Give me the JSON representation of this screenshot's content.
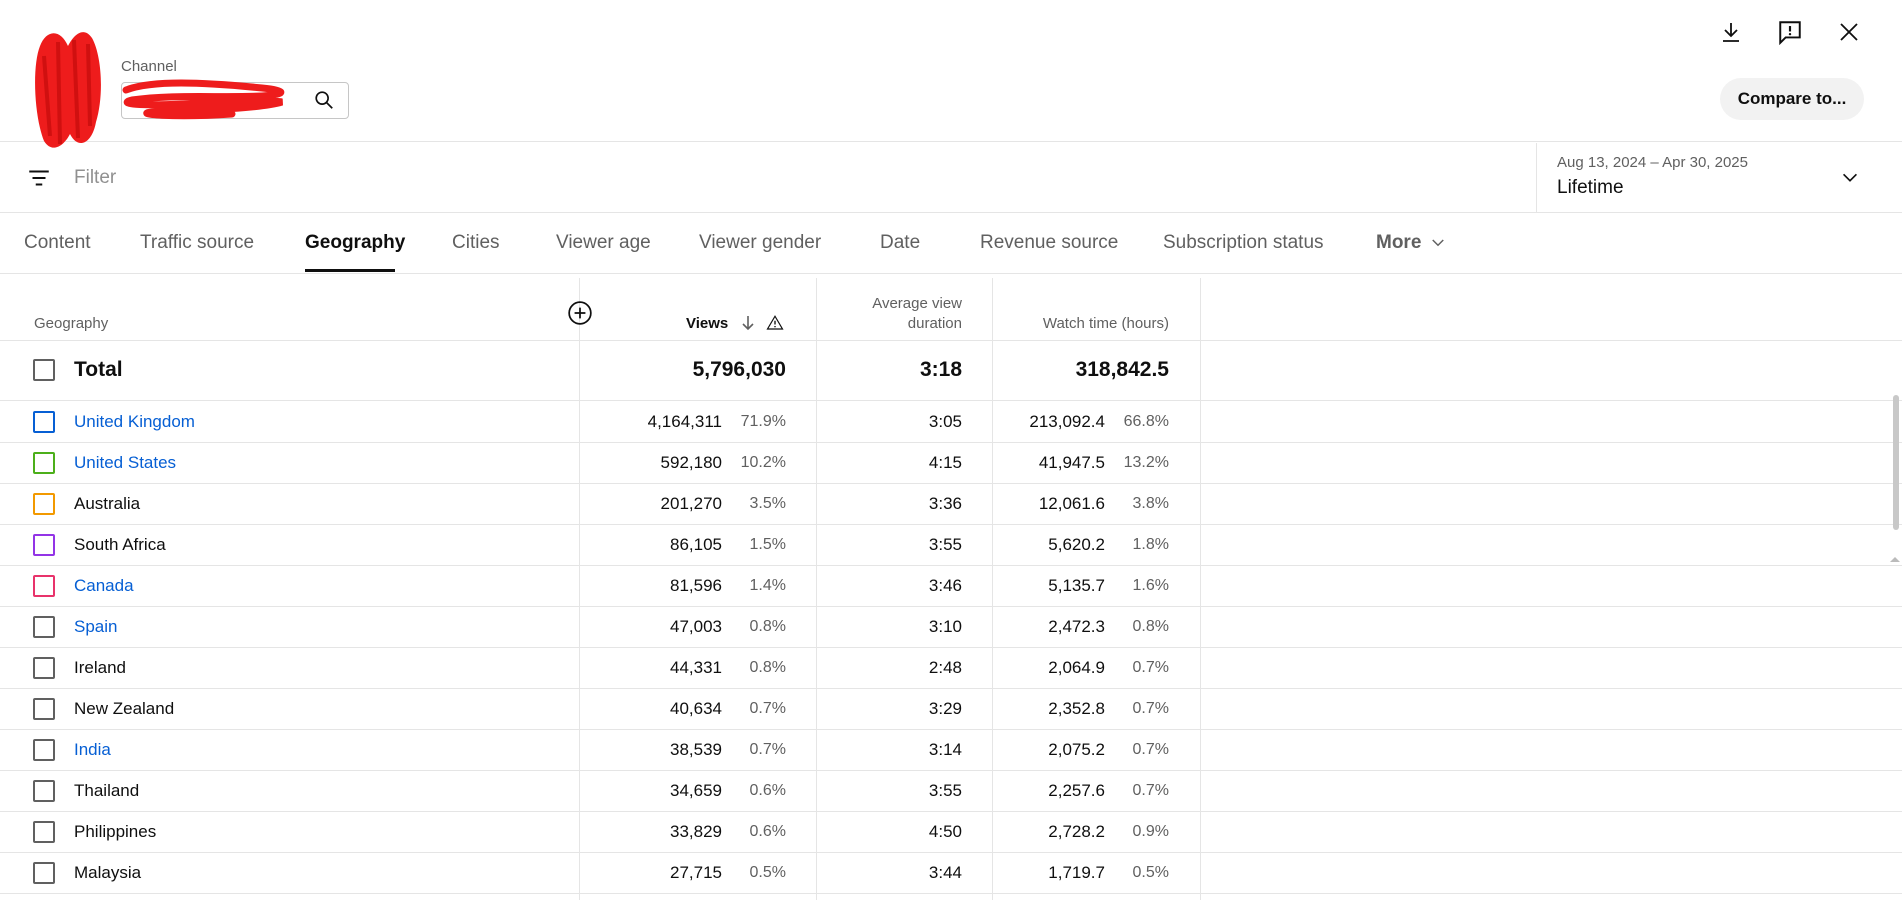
{
  "header": {
    "channel_label": "Channel",
    "compare_label": "Compare to..."
  },
  "filter": {
    "placeholder": "Filter",
    "date_range": "Aug 13, 2024 – Apr 30, 2025",
    "date_value": "Lifetime"
  },
  "tabs": [
    {
      "label": "Content"
    },
    {
      "label": "Traffic source"
    },
    {
      "label": "Geography"
    },
    {
      "label": "Cities"
    },
    {
      "label": "Viewer age"
    },
    {
      "label": "Viewer gender"
    },
    {
      "label": "Date"
    },
    {
      "label": "Revenue source"
    },
    {
      "label": "Subscription status"
    },
    {
      "label": "More"
    }
  ],
  "active_tab": "Geography",
  "table": {
    "headers": {
      "geography": "Geography",
      "views": "Views",
      "avd_line1": "Average view",
      "avd_line2": "duration",
      "watch": "Watch time (hours)"
    },
    "total": {
      "label": "Total",
      "views": "5,796,030",
      "avd": "3:18",
      "watch": "318,842.5"
    },
    "rows": [
      {
        "name": "United Kingdom",
        "link": true,
        "color": "#065fd4",
        "views": "4,164,311",
        "views_pct": "71.9%",
        "avd": "3:05",
        "watch": "213,092.4",
        "watch_pct": "66.8%"
      },
      {
        "name": "United States",
        "link": true,
        "color": "#4caf1a",
        "views": "592,180",
        "views_pct": "10.2%",
        "avd": "4:15",
        "watch": "41,947.5",
        "watch_pct": "13.2%"
      },
      {
        "name": "Australia",
        "link": false,
        "color": "#f29900",
        "views": "201,270",
        "views_pct": "3.5%",
        "avd": "3:36",
        "watch": "12,061.6",
        "watch_pct": "3.8%"
      },
      {
        "name": "South Africa",
        "link": false,
        "color": "#9334e6",
        "views": "86,105",
        "views_pct": "1.5%",
        "avd": "3:55",
        "watch": "5,620.2",
        "watch_pct": "1.8%"
      },
      {
        "name": "Canada",
        "link": true,
        "color": "#e8336b",
        "views": "81,596",
        "views_pct": "1.4%",
        "avd": "3:46",
        "watch": "5,135.7",
        "watch_pct": "1.6%"
      },
      {
        "name": "Spain",
        "link": true,
        "color": "#606060",
        "views": "47,003",
        "views_pct": "0.8%",
        "avd": "3:10",
        "watch": "2,472.3",
        "watch_pct": "0.8%"
      },
      {
        "name": "Ireland",
        "link": false,
        "color": "#606060",
        "views": "44,331",
        "views_pct": "0.8%",
        "avd": "2:48",
        "watch": "2,064.9",
        "watch_pct": "0.7%"
      },
      {
        "name": "New Zealand",
        "link": false,
        "color": "#606060",
        "views": "40,634",
        "views_pct": "0.7%",
        "avd": "3:29",
        "watch": "2,352.8",
        "watch_pct": "0.7%"
      },
      {
        "name": "India",
        "link": true,
        "color": "#606060",
        "views": "38,539",
        "views_pct": "0.7%",
        "avd": "3:14",
        "watch": "2,075.2",
        "watch_pct": "0.7%"
      },
      {
        "name": "Thailand",
        "link": false,
        "color": "#606060",
        "views": "34,659",
        "views_pct": "0.6%",
        "avd": "3:55",
        "watch": "2,257.6",
        "watch_pct": "0.7%"
      },
      {
        "name": "Philippines",
        "link": false,
        "color": "#606060",
        "views": "33,829",
        "views_pct": "0.6%",
        "avd": "4:50",
        "watch": "2,728.2",
        "watch_pct": "0.9%"
      },
      {
        "name": "Malaysia",
        "link": false,
        "color": "#606060",
        "views": "27,715",
        "views_pct": "0.5%",
        "avd": "3:44",
        "watch": "1,719.7",
        "watch_pct": "0.5%"
      }
    ]
  }
}
